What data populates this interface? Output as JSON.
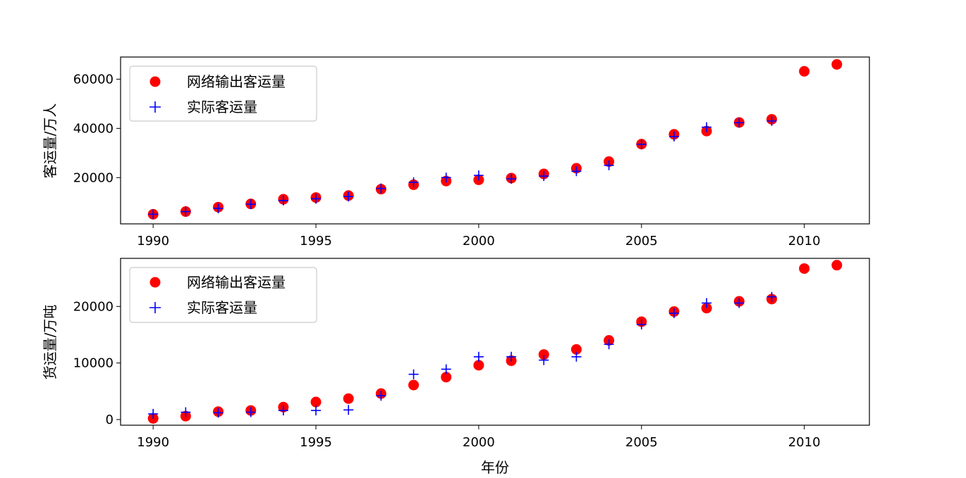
{
  "chart_data": [
    {
      "type": "scatter",
      "title": "",
      "xlabel": "",
      "ylabel": "客运量/万人",
      "xlim": [
        1989,
        2012
      ],
      "ylim": [
        1200,
        69000
      ],
      "xticks": [
        1990,
        1995,
        2000,
        2005,
        2010
      ],
      "yticks": [
        20000,
        40000,
        60000
      ],
      "grid": false,
      "legend_position": "top-left",
      "series": [
        {
          "name": "网络输出客运量",
          "marker": "circle",
          "color": "#ff0000",
          "x": [
            1990,
            1991,
            1992,
            1993,
            1994,
            1995,
            1996,
            1997,
            1998,
            1999,
            2000,
            2001,
            2002,
            2003,
            2004,
            2005,
            2006,
            2007,
            2008,
            2009,
            2010,
            2011
          ],
          "y": [
            5100,
            6200,
            8000,
            9300,
            11200,
            11900,
            12700,
            15300,
            17100,
            18600,
            19100,
            19800,
            21500,
            23800,
            26500,
            33600,
            37600,
            38900,
            42400,
            43700,
            63200,
            66000
          ]
        },
        {
          "name": "实际客运量",
          "marker": "plus",
          "color": "#0000ff",
          "x": [
            1990,
            1991,
            1992,
            1993,
            1994,
            1995,
            1996,
            1997,
            1998,
            1999,
            2000,
            2001,
            2002,
            2003,
            2004,
            2005,
            2006,
            2007,
            2008,
            2009
          ],
          "y": [
            5100,
            6200,
            7500,
            9200,
            10700,
            11400,
            12300,
            15600,
            18100,
            20000,
            20900,
            19500,
            20600,
            22600,
            25000,
            33500,
            36700,
            40500,
            42300,
            43000
          ]
        }
      ]
    },
    {
      "type": "scatter",
      "title": "",
      "xlabel": "年份",
      "ylabel": "货运量/万吨",
      "xlim": [
        1989,
        2012
      ],
      "ylim": [
        -1000,
        28500
      ],
      "xticks": [
        1990,
        1995,
        2000,
        2005,
        2010
      ],
      "yticks": [
        0,
        10000,
        20000
      ],
      "grid": false,
      "legend_position": "top-left",
      "series": [
        {
          "name": "网络输出客运量",
          "marker": "circle",
          "color": "#ff0000",
          "x": [
            1990,
            1991,
            1992,
            1993,
            1994,
            1995,
            1996,
            1997,
            1998,
            1999,
            2000,
            2001,
            2002,
            2003,
            2004,
            2005,
            2006,
            2007,
            2008,
            2009,
            2010,
            2011
          ],
          "y": [
            200,
            600,
            1400,
            1600,
            2200,
            3100,
            3700,
            4600,
            6100,
            7500,
            9600,
            10400,
            11500,
            12400,
            14000,
            17300,
            19100,
            19700,
            20900,
            21300,
            26700,
            27300
          ]
        },
        {
          "name": "实际客运量",
          "marker": "plus",
          "color": "#0000ff",
          "x": [
            1990,
            1991,
            1992,
            1993,
            1994,
            1995,
            1996,
            1997,
            1998,
            1999,
            2000,
            2001,
            2002,
            2003,
            2004,
            2005,
            2006,
            2007,
            2008,
            2009
          ],
          "y": [
            1000,
            1300,
            1200,
            1300,
            1600,
            1600,
            1700,
            4200,
            8000,
            8900,
            11100,
            11100,
            10500,
            11100,
            13300,
            16800,
            18800,
            20600,
            20600,
            21700
          ]
        }
      ]
    }
  ]
}
